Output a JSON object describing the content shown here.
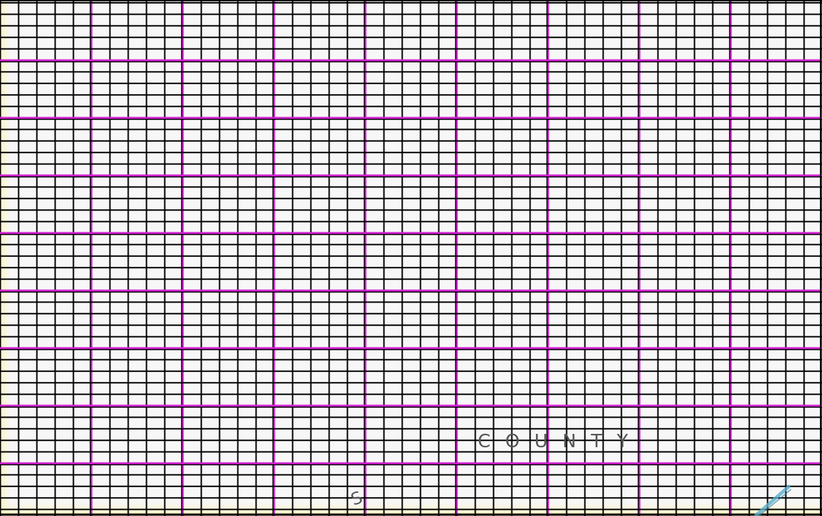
{
  "map": {
    "labels": {
      "county": "COUNTY",
      "fragment": "S"
    },
    "colors": {
      "background": "#f7f7f7",
      "edge_tint": "#fff6cc",
      "grid_minor": "#000000",
      "section_lines": "#d020d0",
      "water": "#5aaecc"
    }
  }
}
